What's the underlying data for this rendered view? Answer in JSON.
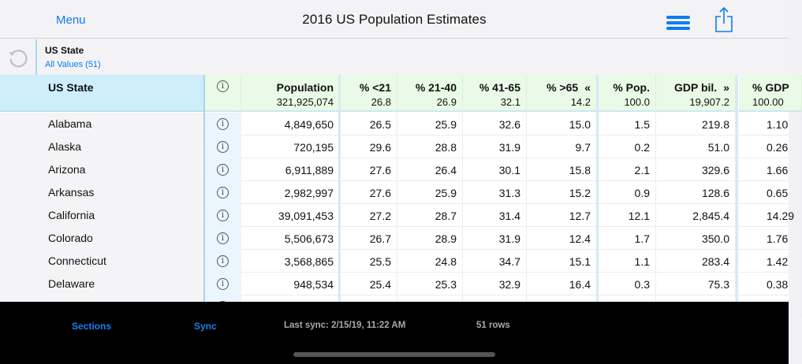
{
  "navbar": {
    "menu_label": "Menu",
    "title": "2016 US Population Estimates",
    "hamburger_icon": "hamburger-menu-icon",
    "share_icon": "share-icon"
  },
  "filter": {
    "refresh_icon": "refresh-icon",
    "label": "US State",
    "value": "All Values (51)"
  },
  "table": {
    "state_header": "US State",
    "info_icon_glyph": "ⓘ",
    "columns": [
      {
        "label": "Population",
        "total": "321,925,074"
      },
      {
        "label": "% <21",
        "total": "26.8"
      },
      {
        "label": "% 21-40",
        "total": "26.9"
      },
      {
        "label": "% 41-65",
        "total": "32.1"
      },
      {
        "label": "% >65",
        "total": "14.2",
        "arrow": "«"
      },
      {
        "label": "% Pop.",
        "total": "100.0"
      },
      {
        "label": "GDP bil.",
        "total": "19,907.2",
        "arrow": "»"
      },
      {
        "label": "% GDP",
        "total": "100.00"
      }
    ],
    "rows": [
      {
        "state": "Alabama",
        "values": [
          "4,849,650",
          "26.5",
          "25.9",
          "32.6",
          "15.0",
          "1.5",
          "219.8",
          "1.10"
        ]
      },
      {
        "state": "Alaska",
        "values": [
          "720,195",
          "29.6",
          "28.8",
          "31.9",
          "9.7",
          "0.2",
          "51.0",
          "0.26"
        ]
      },
      {
        "state": "Arizona",
        "values": [
          "6,911,889",
          "27.6",
          "26.4",
          "30.1",
          "15.8",
          "2.1",
          "329.6",
          "1.66"
        ]
      },
      {
        "state": "Arkansas",
        "values": [
          "2,982,997",
          "27.6",
          "25.9",
          "31.3",
          "15.2",
          "0.9",
          "128.6",
          "0.65"
        ]
      },
      {
        "state": "California",
        "values": [
          "39,091,453",
          "27.2",
          "28.7",
          "31.4",
          "12.7",
          "12.1",
          "2,845.4",
          "14.29"
        ]
      },
      {
        "state": "Colorado",
        "values": [
          "5,506,673",
          "26.7",
          "28.9",
          "31.9",
          "12.4",
          "1.7",
          "350.0",
          "1.76"
        ]
      },
      {
        "state": "Connecticut",
        "values": [
          "3,568,865",
          "25.5",
          "24.8",
          "34.7",
          "15.1",
          "1.1",
          "283.4",
          "1.42"
        ]
      },
      {
        "state": "Delaware",
        "values": [
          "948,534",
          "25.4",
          "25.3",
          "32.9",
          "16.4",
          "0.3",
          "75.3",
          "0.38"
        ]
      }
    ]
  },
  "toolbar": {
    "sections_label": "Sections",
    "sync_label": "Sync",
    "last_sync": "Last sync: 2/15/19, 11:22 AM",
    "row_count": "51 rows"
  },
  "colors": {
    "accent": "#0a7cf2",
    "header_state_bg": "#cdeefa",
    "header_col_bg": "#e9fbe6",
    "toolbar_bg": "#000000"
  }
}
